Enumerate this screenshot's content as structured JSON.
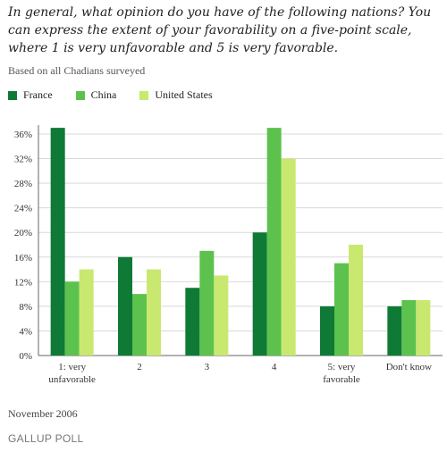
{
  "header": {
    "title": "In general, what opinion do you have of the following nations? You can express the extent of your favorability on a five-point scale, where 1 is very unfavorable and 5 is very favorable.",
    "subtitle": "Based on all Chadians surveyed"
  },
  "footer": {
    "date": "November 2006",
    "brand": "GALLUP POLL"
  },
  "colors": {
    "France": "#0e7a36",
    "China": "#5cc24d",
    "United States": "#c9e870",
    "grid": "#d9d9d9",
    "axis": "#666666"
  },
  "chart_data": {
    "type": "bar",
    "title": "In general, what opinion do you have of the following nations? You can express the extent of your favorability on a five-point scale, where 1 is very unfavorable and 5 is very favorable.",
    "categories": [
      [
        "1: very",
        "unfavorable"
      ],
      [
        "2"
      ],
      [
        "3"
      ],
      [
        "4"
      ],
      [
        "5: very",
        "favorable"
      ],
      [
        "Don't know"
      ]
    ],
    "series": [
      {
        "name": "France",
        "values": [
          37,
          16,
          11,
          20,
          8,
          8
        ]
      },
      {
        "name": "China",
        "values": [
          12,
          10,
          17,
          37,
          15,
          9
        ]
      },
      {
        "name": "United States",
        "values": [
          14,
          14,
          13,
          32,
          18,
          9
        ]
      }
    ],
    "yticks": [
      "0%",
      "4%",
      "8%",
      "12%",
      "16%",
      "20%",
      "24%",
      "28%",
      "32%",
      "36%"
    ],
    "ytick_values": [
      0,
      4,
      8,
      12,
      16,
      20,
      24,
      28,
      32,
      36
    ],
    "ylim": [
      0,
      37
    ],
    "grid": true,
    "legend": "top-left"
  }
}
